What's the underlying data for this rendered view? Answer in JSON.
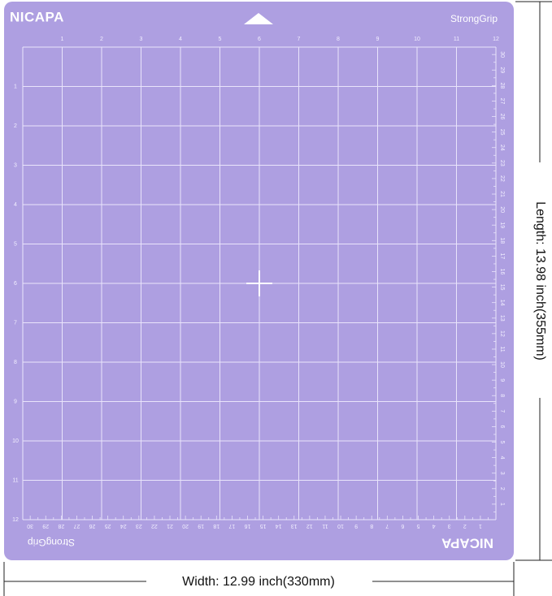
{
  "mat": {
    "top_brand": "NICAPA",
    "top_grip": "StrongGrip",
    "bottom_grip": "StrongGrip",
    "bottom_brand": "NICAPA",
    "top_inch_labels": [
      1,
      2,
      3,
      4,
      5,
      6,
      7,
      8,
      9,
      10,
      11,
      12
    ],
    "left_inch_labels": [
      1,
      2,
      3,
      4,
      5,
      6,
      7,
      8,
      9,
      10,
      11,
      12
    ],
    "right_cm_labels": [
      1,
      2,
      3,
      4,
      5,
      6,
      7,
      8,
      9,
      10,
      11,
      12,
      13,
      14,
      15,
      16,
      17,
      18,
      19,
      20,
      21,
      22,
      23,
      24,
      25,
      26,
      27,
      28,
      29,
      30
    ],
    "bottom_cm_labels": [
      1,
      2,
      3,
      4,
      5,
      6,
      7,
      8,
      9,
      10,
      11,
      12,
      13,
      14,
      15,
      16,
      17,
      18,
      19,
      20,
      21,
      22,
      23,
      24,
      25,
      26,
      27,
      28,
      29,
      30
    ]
  },
  "dimensions": {
    "width": "Width: 12.99 inch(330mm)",
    "length": "Length: 13.98 inch(355mm)"
  }
}
